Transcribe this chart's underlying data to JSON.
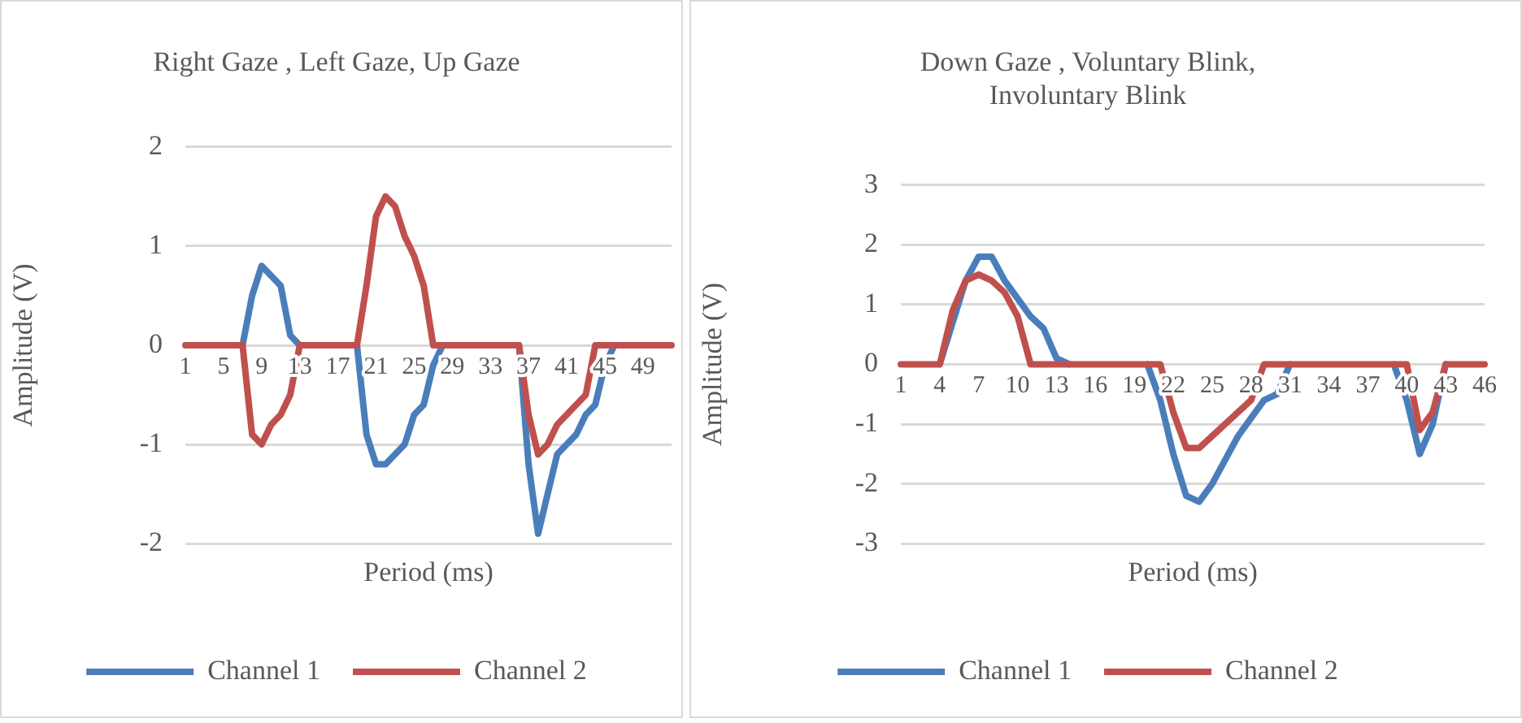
{
  "chart_data": [
    {
      "type": "line",
      "title": "Right Gaze , Left Gaze, Up Gaze",
      "xlabel": "Period (ms)",
      "ylabel": "Amplitude (V)",
      "categories": [
        "1",
        null,
        null,
        null,
        "5",
        null,
        null,
        null,
        "9",
        null,
        null,
        null,
        "13",
        null,
        null,
        null,
        "17",
        null,
        null,
        null,
        "21",
        null,
        null,
        null,
        "25",
        null,
        null,
        null,
        "29",
        null,
        null,
        null,
        "33",
        null,
        null,
        null,
        "37",
        null,
        null,
        null,
        "41",
        null,
        null,
        null,
        "45",
        null,
        null,
        null,
        "49",
        null,
        null,
        null
      ],
      "series": [
        {
          "name": "Channel 1",
          "color": "#4a7ebb",
          "values": [
            null,
            null,
            null,
            null,
            null,
            null,
            0,
            0.5,
            0.8,
            0.7,
            0.6,
            0.1,
            0,
            null,
            null,
            null,
            null,
            null,
            0,
            -0.9,
            -1.2,
            -1.2,
            -1.1,
            -1,
            -0.7,
            -0.6,
            -0.2,
            0,
            null,
            null,
            null,
            null,
            null,
            null,
            null,
            0,
            -1.2,
            -1.9,
            -1.5,
            -1.1,
            -1,
            -0.9,
            -0.7,
            -0.6,
            -0.2,
            0,
            null,
            null,
            null,
            null,
            null,
            null
          ]
        },
        {
          "name": "Channel 2",
          "color": "#c0504d",
          "values": [
            0,
            0,
            0,
            0,
            0,
            0,
            0,
            -0.9,
            -1,
            -0.8,
            -0.7,
            -0.5,
            0,
            0,
            0,
            0,
            0,
            0,
            0,
            0.6,
            1.3,
            1.5,
            1.4,
            1.1,
            0.9,
            0.6,
            0,
            0,
            0,
            0,
            0,
            0,
            0,
            0,
            0,
            0,
            -0.7,
            -1.1,
            -1,
            -0.8,
            -0.7,
            -0.6,
            -0.5,
            0,
            0,
            0,
            0,
            0,
            0,
            0,
            0,
            0
          ]
        }
      ],
      "ylim": [
        -2,
        2
      ],
      "yticks": [
        -2,
        -1,
        0,
        1,
        2
      ],
      "grid": "y",
      "legend": "bottom"
    },
    {
      "type": "line",
      "title": "Down Gaze , Voluntary Blink, Involuntary Blink",
      "xlabel": "Period (ms)",
      "ylabel": "Amplitude (V)",
      "categories": [
        "1",
        null,
        null,
        "4",
        null,
        null,
        "7",
        null,
        null,
        "10",
        null,
        null,
        "13",
        null,
        null,
        "16",
        null,
        null,
        "19",
        null,
        null,
        "22",
        null,
        null,
        "25",
        null,
        null,
        "28",
        null,
        null,
        "31",
        null,
        null,
        "34",
        null,
        null,
        "37",
        null,
        null,
        "40",
        null,
        null,
        "43",
        null,
        null,
        "46"
      ],
      "series": [
        {
          "name": "Channel 1",
          "color": "#4a7ebb",
          "values": [
            null,
            null,
            null,
            0,
            0.7,
            1.4,
            1.8,
            1.8,
            1.4,
            1.1,
            0.8,
            0.6,
            0.1,
            0,
            null,
            null,
            null,
            null,
            null,
            0,
            -0.6,
            -1.5,
            -2.2,
            -2.3,
            -2,
            -1.6,
            -1.2,
            -0.9,
            -0.6,
            -0.5,
            0,
            null,
            null,
            null,
            null,
            null,
            null,
            null,
            0,
            -0.6,
            -1.5,
            -1,
            0,
            null,
            null,
            null
          ]
        },
        {
          "name": "Channel 2",
          "color": "#c0504d",
          "values": [
            0,
            0,
            0,
            0,
            0.9,
            1.4,
            1.5,
            1.4,
            1.2,
            0.8,
            0,
            0,
            0,
            0,
            0,
            0,
            0,
            0,
            0,
            0,
            0,
            -0.8,
            -1.4,
            -1.4,
            -1.2,
            -1,
            -0.8,
            -0.6,
            0,
            0,
            0,
            0,
            0,
            0,
            0,
            0,
            0,
            0,
            0,
            0,
            -1.1,
            -0.8,
            0,
            0,
            0,
            0
          ]
        }
      ],
      "ylim": [
        -3,
        3
      ],
      "yticks": [
        -3,
        -2,
        -1,
        0,
        1,
        2,
        3
      ],
      "grid": "y",
      "legend": "bottom"
    }
  ]
}
